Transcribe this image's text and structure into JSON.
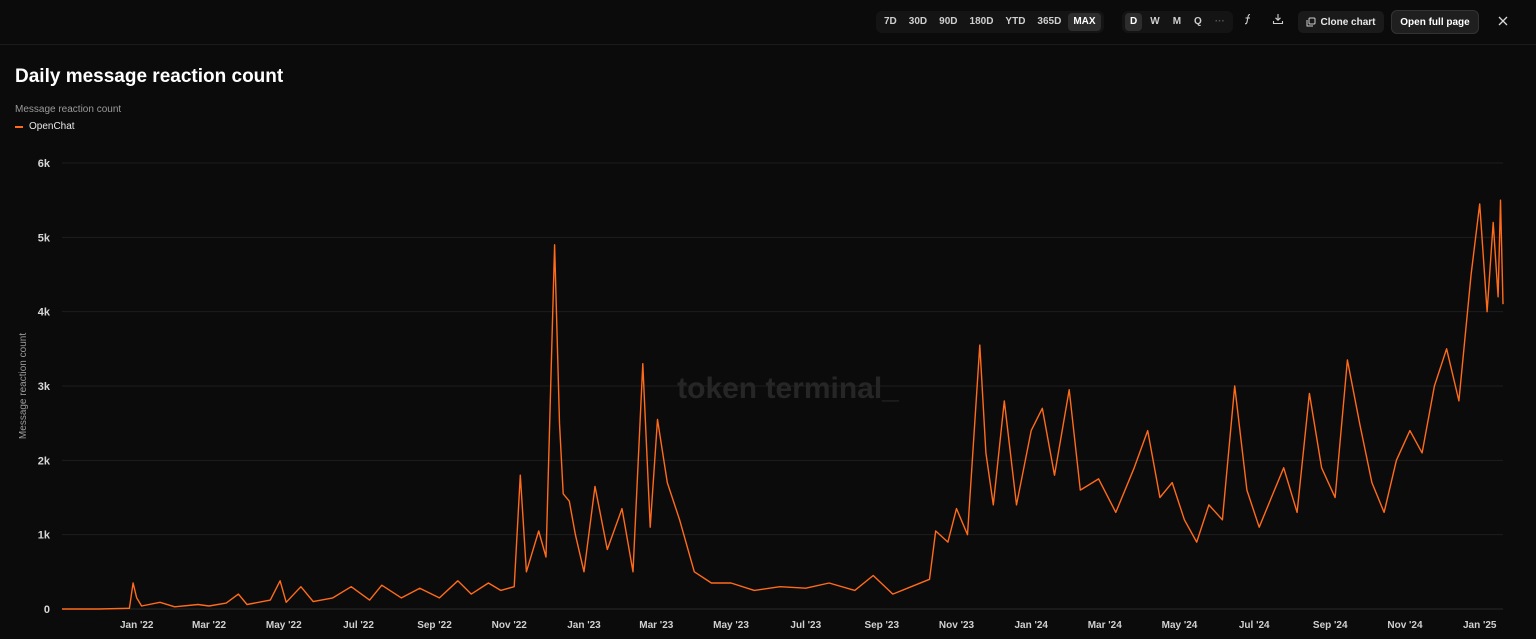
{
  "toolbar": {
    "ranges": [
      "7D",
      "30D",
      "90D",
      "180D",
      "YTD",
      "365D",
      "MAX"
    ],
    "active_range": "MAX",
    "granularity": [
      "D",
      "W",
      "M",
      "Q",
      "···"
    ],
    "active_granularity": "D",
    "formula_icon": "formula-icon",
    "download_icon": "download-icon",
    "clone_label": "Clone chart",
    "open_label": "Open full page",
    "close_icon": "close-icon"
  },
  "title": "Daily message reaction count",
  "subtitle": "Message reaction count",
  "watermark": "token terminal_",
  "colors": {
    "series": "#ff6b1a",
    "background": "#0b0b0b",
    "grid": "#1e1e1e"
  },
  "chart_data": {
    "type": "line",
    "title": "Daily message reaction count",
    "ylabel": "Message reaction count",
    "xlabel": "",
    "ylim": [
      0,
      6000
    ],
    "y_ticks": [
      "0",
      "1k",
      "2k",
      "3k",
      "4k",
      "5k",
      "6k"
    ],
    "y_tick_values": [
      0,
      1000,
      2000,
      3000,
      4000,
      5000,
      6000
    ],
    "x_ticks": [
      "Jan '22",
      "Mar '22",
      "May '22",
      "Jul '22",
      "Sep '22",
      "Nov '22",
      "Jan '23",
      "Mar '23",
      "May '23",
      "Jul '23",
      "Sep '23",
      "Nov '23",
      "Jan '24",
      "Mar '24",
      "May '24",
      "Jul '24",
      "Sep '24",
      "Nov '24",
      "Jan '25"
    ],
    "x_tick_dates": [
      "2022-01-01",
      "2022-03-01",
      "2022-05-01",
      "2022-07-01",
      "2022-09-01",
      "2022-11-01",
      "2023-01-01",
      "2023-03-01",
      "2023-05-01",
      "2023-07-01",
      "2023-09-01",
      "2023-11-01",
      "2024-01-01",
      "2024-03-01",
      "2024-05-01",
      "2024-07-01",
      "2024-09-01",
      "2024-11-01",
      "2025-01-01"
    ],
    "x_range": [
      "2021-11-01",
      "2025-01-20"
    ],
    "grid": true,
    "legend_position": "top-left",
    "series": [
      {
        "name": "OpenChat",
        "color": "#ff6b1a",
        "points": [
          [
            "2021-11-01",
            0
          ],
          [
            "2021-12-01",
            0
          ],
          [
            "2021-12-26",
            10
          ],
          [
            "2021-12-29",
            350
          ],
          [
            "2022-01-01",
            150
          ],
          [
            "2022-01-05",
            40
          ],
          [
            "2022-01-20",
            90
          ],
          [
            "2022-02-01",
            30
          ],
          [
            "2022-02-20",
            60
          ],
          [
            "2022-03-01",
            40
          ],
          [
            "2022-03-15",
            80
          ],
          [
            "2022-03-25",
            200
          ],
          [
            "2022-04-01",
            60
          ],
          [
            "2022-04-20",
            120
          ],
          [
            "2022-04-28",
            380
          ],
          [
            "2022-05-03",
            90
          ],
          [
            "2022-05-15",
            300
          ],
          [
            "2022-05-25",
            100
          ],
          [
            "2022-06-10",
            150
          ],
          [
            "2022-06-25",
            300
          ],
          [
            "2022-07-10",
            120
          ],
          [
            "2022-07-20",
            320
          ],
          [
            "2022-08-05",
            150
          ],
          [
            "2022-08-20",
            280
          ],
          [
            "2022-09-05",
            150
          ],
          [
            "2022-09-20",
            380
          ],
          [
            "2022-10-01",
            200
          ],
          [
            "2022-10-15",
            350
          ],
          [
            "2022-10-25",
            250
          ],
          [
            "2022-11-05",
            300
          ],
          [
            "2022-11-10",
            1800
          ],
          [
            "2022-11-15",
            500
          ],
          [
            "2022-11-25",
            1050
          ],
          [
            "2022-12-01",
            700
          ],
          [
            "2022-12-08",
            4900
          ],
          [
            "2022-12-12",
            2500
          ],
          [
            "2022-12-15",
            1550
          ],
          [
            "2022-12-20",
            1450
          ],
          [
            "2022-12-25",
            1000
          ],
          [
            "2023-01-01",
            500
          ],
          [
            "2023-01-10",
            1650
          ],
          [
            "2023-01-20",
            800
          ],
          [
            "2023-02-01",
            1350
          ],
          [
            "2023-02-10",
            500
          ],
          [
            "2023-02-18",
            3300
          ],
          [
            "2023-02-24",
            1100
          ],
          [
            "2023-03-02",
            2550
          ],
          [
            "2023-03-10",
            1700
          ],
          [
            "2023-03-20",
            1200
          ],
          [
            "2023-04-01",
            500
          ],
          [
            "2023-04-15",
            350
          ],
          [
            "2023-05-01",
            350
          ],
          [
            "2023-05-20",
            250
          ],
          [
            "2023-06-10",
            300
          ],
          [
            "2023-07-01",
            280
          ],
          [
            "2023-07-20",
            350
          ],
          [
            "2023-08-10",
            250
          ],
          [
            "2023-08-25",
            450
          ],
          [
            "2023-09-10",
            200
          ],
          [
            "2023-09-25",
            300
          ],
          [
            "2023-10-10",
            400
          ],
          [
            "2023-10-15",
            1050
          ],
          [
            "2023-10-25",
            900
          ],
          [
            "2023-11-01",
            1350
          ],
          [
            "2023-11-10",
            1000
          ],
          [
            "2023-11-20",
            3550
          ],
          [
            "2023-11-25",
            2100
          ],
          [
            "2023-12-01",
            1400
          ],
          [
            "2023-12-10",
            2800
          ],
          [
            "2023-12-20",
            1400
          ],
          [
            "2024-01-01",
            2400
          ],
          [
            "2024-01-10",
            2700
          ],
          [
            "2024-01-20",
            1800
          ],
          [
            "2024-02-01",
            2950
          ],
          [
            "2024-02-10",
            1600
          ],
          [
            "2024-02-25",
            1750
          ],
          [
            "2024-03-10",
            1300
          ],
          [
            "2024-03-25",
            1900
          ],
          [
            "2024-04-05",
            2400
          ],
          [
            "2024-04-15",
            1500
          ],
          [
            "2024-04-25",
            1700
          ],
          [
            "2024-05-05",
            1200
          ],
          [
            "2024-05-15",
            900
          ],
          [
            "2024-05-25",
            1400
          ],
          [
            "2024-06-05",
            1200
          ],
          [
            "2024-06-15",
            3000
          ],
          [
            "2024-06-25",
            1600
          ],
          [
            "2024-07-05",
            1100
          ],
          [
            "2024-07-15",
            1500
          ],
          [
            "2024-07-25",
            1900
          ],
          [
            "2024-08-05",
            1300
          ],
          [
            "2024-08-15",
            2900
          ],
          [
            "2024-08-25",
            1900
          ],
          [
            "2024-09-05",
            1500
          ],
          [
            "2024-09-15",
            3350
          ],
          [
            "2024-09-25",
            2500
          ],
          [
            "2024-10-05",
            1700
          ],
          [
            "2024-10-15",
            1300
          ],
          [
            "2024-10-25",
            2000
          ],
          [
            "2024-11-05",
            2400
          ],
          [
            "2024-11-15",
            2100
          ],
          [
            "2024-11-25",
            3000
          ],
          [
            "2024-12-05",
            3500
          ],
          [
            "2024-12-15",
            2800
          ],
          [
            "2024-12-25",
            4500
          ],
          [
            "2025-01-01",
            5450
          ],
          [
            "2025-01-07",
            4000
          ],
          [
            "2025-01-12",
            5200
          ],
          [
            "2025-01-16",
            4200
          ],
          [
            "2025-01-18",
            5500
          ],
          [
            "2025-01-20",
            4100
          ]
        ]
      }
    ]
  }
}
